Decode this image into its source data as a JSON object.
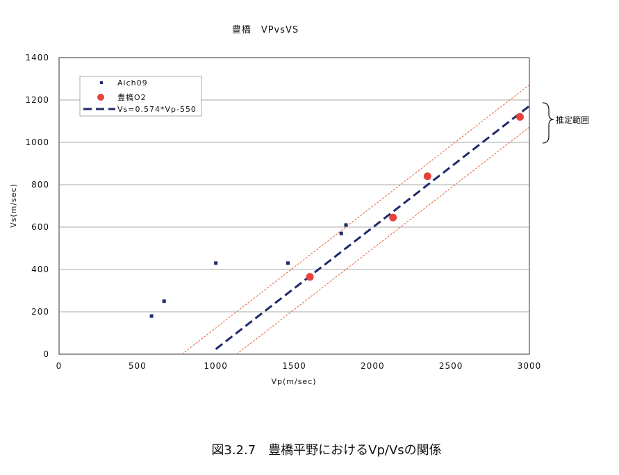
{
  "title": "豊橋　VPvsVS",
  "caption": "図3.2.7　豊橋平野におけるVp/Vsの関係",
  "chart_data": {
    "type": "scatter",
    "title": "豊橋　VPvsVS",
    "xlabel": "Vp(m/sec)",
    "ylabel": "Vs(m/sec)",
    "xlim": [
      0,
      3000
    ],
    "ylim": [
      0,
      1400
    ],
    "x_ticks": [
      0,
      500,
      1000,
      1500,
      2000,
      2500,
      3000
    ],
    "y_ticks": [
      0,
      200,
      400,
      600,
      800,
      1000,
      1200,
      1400
    ],
    "grid": "horizontal",
    "legend_position": "top-left",
    "series": [
      {
        "name": "Aich09",
        "marker": "square",
        "color": "#1f2a6b",
        "points": [
          [
            590,
            180
          ],
          [
            670,
            250
          ],
          [
            1000,
            430
          ],
          [
            1460,
            430
          ],
          [
            1800,
            570
          ],
          [
            1830,
            610
          ]
        ]
      },
      {
        "name": "豊橋O2",
        "marker": "circle",
        "color": "#e8403a",
        "points": [
          [
            1600,
            365
          ],
          [
            2130,
            645
          ],
          [
            2350,
            840
          ],
          [
            2940,
            1120
          ]
        ]
      }
    ],
    "fit_line": {
      "name": "Vs=0.574*Vp-550",
      "slope": 0.574,
      "intercept": -550,
      "x_range": [
        1000,
        3000
      ],
      "color": "#1f2a6b",
      "style": "dashed"
    },
    "band_lines": {
      "offset": 100,
      "x_range": [
        780,
        3000
      ],
      "color": "#e8603a",
      "style": "dotted"
    },
    "annotation": {
      "text": "推定範囲",
      "target": "band"
    }
  }
}
